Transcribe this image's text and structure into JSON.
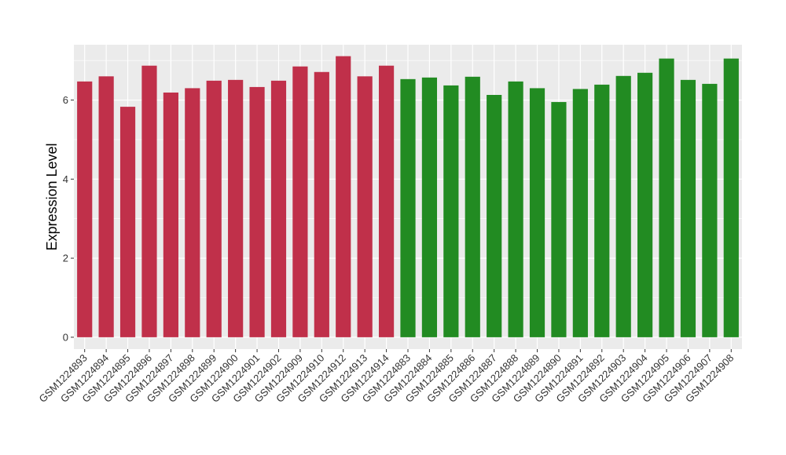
{
  "chart_data": {
    "type": "bar",
    "title": "",
    "xlabel": "",
    "ylabel": "Expression Level",
    "ylim": [
      -0.3,
      7.4
    ],
    "yticks": [
      0,
      2,
      4,
      6
    ],
    "grid": true,
    "legend": "none",
    "categories": [
      "GSM1224893",
      "GSM1224894",
      "GSM1224895",
      "GSM1224896",
      "GSM1224897",
      "GSM1224898",
      "GSM1224899",
      "GSM1224900",
      "GSM1224901",
      "GSM1224902",
      "GSM1224909",
      "GSM1224910",
      "GSM1224912",
      "GSM1224913",
      "GSM1224914",
      "GSM1224883",
      "GSM1224884",
      "GSM1224885",
      "GSM1224886",
      "GSM1224887",
      "GSM1224888",
      "GSM1224889",
      "GSM1224890",
      "GSM1224891",
      "GSM1224892",
      "GSM1224903",
      "GSM1224904",
      "GSM1224905",
      "GSM1224906",
      "GSM1224907",
      "GSM1224908"
    ],
    "values": [
      6.47,
      6.6,
      5.83,
      6.87,
      6.19,
      6.3,
      6.49,
      6.51,
      6.33,
      6.49,
      6.85,
      6.71,
      7.11,
      6.6,
      6.87,
      6.53,
      6.57,
      6.37,
      6.59,
      6.13,
      6.47,
      6.3,
      5.95,
      6.28,
      6.39,
      6.61,
      6.69,
      7.05,
      6.51,
      6.41,
      7.05
    ],
    "bar_colors": [
      "#c0304a",
      "#c0304a",
      "#c0304a",
      "#c0304a",
      "#c0304a",
      "#c0304a",
      "#c0304a",
      "#c0304a",
      "#c0304a",
      "#c0304a",
      "#c0304a",
      "#c0304a",
      "#c0304a",
      "#c0304a",
      "#c0304a",
      "#228b22",
      "#228b22",
      "#228b22",
      "#228b22",
      "#228b22",
      "#228b22",
      "#228b22",
      "#228b22",
      "#228b22",
      "#228b22",
      "#228b22",
      "#228b22",
      "#228b22",
      "#228b22",
      "#228b22",
      "#228b22"
    ],
    "panel_background": "#ebebeb",
    "grid_color": "#ffffff"
  }
}
